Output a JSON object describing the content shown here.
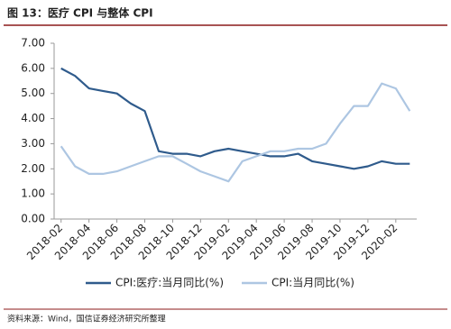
{
  "chart_data": {
    "type": "line",
    "title": "图 13：医疗 CPI 与整体 CPI",
    "source": "资料来源：Wind，国信证券经济研究所整理",
    "categories": [
      "2018-02",
      null,
      "2018-04",
      null,
      "2018-06",
      null,
      "2018-08",
      null,
      "2018-10",
      null,
      "2018-12",
      null,
      "2019-02",
      null,
      "2019-04",
      null,
      "2019-06",
      null,
      "2019-08",
      null,
      "2019-10",
      null,
      "2019-12",
      null,
      "2020-02",
      null
    ],
    "series": [
      {
        "name": "CPI:医疗:当月同比(%)",
        "color": "#2f5b8c",
        "values": [
          6.0,
          5.7,
          5.2,
          5.1,
          5.0,
          4.6,
          4.3,
          2.7,
          2.6,
          2.6,
          2.5,
          2.7,
          2.8,
          2.7,
          2.6,
          2.5,
          2.5,
          2.6,
          2.3,
          2.2,
          2.1,
          2.0,
          2.1,
          2.3,
          2.2,
          2.2
        ]
      },
      {
        "name": "CPI:当月同比(%)",
        "color": "#adc6e2",
        "values": [
          2.9,
          2.1,
          1.8,
          1.8,
          1.9,
          2.1,
          2.3,
          2.5,
          2.5,
          2.2,
          1.9,
          1.7,
          1.5,
          2.3,
          2.5,
          2.7,
          2.7,
          2.8,
          2.8,
          3.0,
          3.8,
          4.5,
          4.5,
          5.4,
          5.2,
          4.3
        ]
      }
    ],
    "ylim": [
      0,
      7
    ],
    "yticks": [
      {
        "value": 0,
        "label": "0.00"
      },
      {
        "value": 1,
        "label": "1.00"
      },
      {
        "value": 2,
        "label": "2.00"
      },
      {
        "value": 3,
        "label": "3.00"
      },
      {
        "value": 4,
        "label": "4.00"
      },
      {
        "value": 5,
        "label": "5.00"
      },
      {
        "value": 6,
        "label": "6.00"
      },
      {
        "value": 7,
        "label": "7.00"
      }
    ],
    "grid": false,
    "legend": "bottom"
  }
}
